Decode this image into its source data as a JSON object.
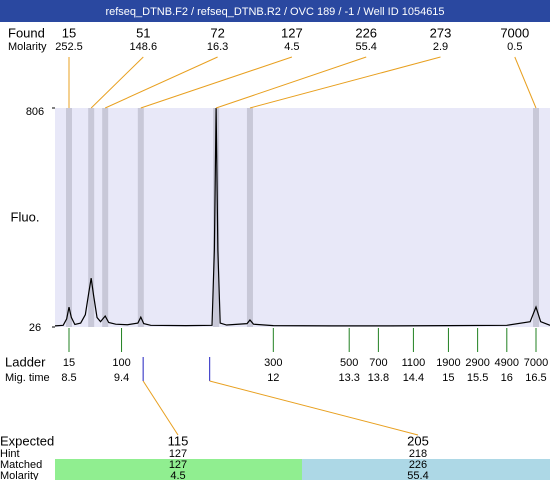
{
  "chart_data": {
    "type": "line",
    "title": "refseq_DTNB.F2 / refseq_DTNB.R2 / OVC 189 / -1 / Well ID 1054615",
    "y_label": "Fluo.",
    "xlim": [
      8.26,
      16.74
    ],
    "ylim": [
      26,
      806
    ],
    "yticks": [
      26,
      806
    ],
    "color": "#000000",
    "x": [
      8.26,
      8.4,
      8.46,
      8.5,
      8.54,
      8.6,
      8.7,
      8.78,
      8.84,
      8.88,
      8.92,
      8.98,
      9.04,
      9.12,
      9.18,
      9.3,
      9.5,
      9.68,
      9.73,
      9.78,
      9.9,
      10.5,
      10.95,
      10.99,
      11.02,
      11.05,
      11.09,
      11.2,
      11.55,
      11.6,
      11.66,
      12,
      13,
      14,
      15,
      16,
      16.4,
      16.5,
      16.58,
      16.74
    ],
    "values": [
      30,
      32,
      55,
      97,
      60,
      35,
      40,
      70,
      150,
      200,
      140,
      60,
      45,
      65,
      42,
      36,
      34,
      40,
      61,
      38,
      32,
      31,
      32,
      300,
      806,
      300,
      40,
      33,
      38,
      51,
      36,
      31,
      30,
      30,
      31,
      32,
      45,
      97,
      45,
      32
    ],
    "found": {
      "label": "Found",
      "molarity_label": "Molarity",
      "sizes": [
        15,
        51,
        72,
        127,
        226,
        273,
        7000
      ],
      "molarities": [
        252.5,
        148.6,
        16.3,
        4.5,
        55.4,
        2.9,
        0.5
      ],
      "times": [
        8.5,
        8.88,
        9.12,
        9.73,
        11.02,
        11.6,
        16.5
      ],
      "color": "#e8a020",
      "band_color": "#c8c8d8"
    },
    "ladder": {
      "label": "Ladder",
      "time_label": "Mig. time",
      "sizes": [
        15,
        100,
        300,
        500,
        700,
        1100,
        1900,
        2900,
        4900,
        7000
      ],
      "times": [
        8.5,
        9.4,
        12,
        13.3,
        13.8,
        14.4,
        15,
        15.5,
        16,
        16.5
      ],
      "color": "#208020"
    },
    "expected": {
      "labels": [
        "Expected",
        "Hint",
        "Matched",
        "Molarity"
      ],
      "expected": [
        115,
        205
      ],
      "hint": [
        127,
        218
      ],
      "matched": [
        127,
        226
      ],
      "molarity": [
        4.5,
        55.4
      ],
      "times": [
        9.77,
        10.91
      ],
      "colors": [
        "#90ee90",
        "#add8e6"
      ],
      "marker_color": "#2020c0"
    }
  }
}
